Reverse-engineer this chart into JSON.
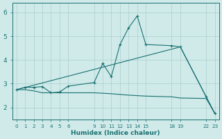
{
  "background_color": "#d0eaea",
  "grid_color": "#aacece",
  "line_color": "#1a7070",
  "xlabel": "Humidex (Indice chaleur)",
  "figsize": [
    3.2,
    2.0
  ],
  "dpi": 100,
  "xlim": [
    -0.5,
    23.5
  ],
  "ylim": [
    1.5,
    6.4
  ],
  "yticks": [
    2,
    3,
    4,
    5,
    6
  ],
  "xtick_positions": [
    0,
    1,
    2,
    3,
    4,
    5,
    6,
    9,
    10,
    11,
    12,
    13,
    14,
    15,
    18,
    19,
    22,
    23
  ],
  "xtick_labels": [
    "0",
    "1",
    "2",
    "3",
    "4",
    "5",
    "6",
    "9",
    "10",
    "11",
    "12",
    "13",
    "14",
    "15",
    "18",
    "19",
    "22",
    "23"
  ],
  "line1_x": [
    0,
    1,
    2,
    3,
    4,
    5,
    6,
    9,
    10,
    11,
    12,
    13,
    14,
    15,
    18,
    19,
    22,
    23
  ],
  "line1_y": [
    2.75,
    2.85,
    2.85,
    2.88,
    2.62,
    2.65,
    2.9,
    3.05,
    3.85,
    3.3,
    4.65,
    5.35,
    5.85,
    4.65,
    4.6,
    4.55,
    2.45,
    1.75
  ],
  "line2_x": [
    0,
    19,
    22,
    23
  ],
  "line2_y": [
    2.75,
    4.55,
    2.45,
    1.75
  ],
  "line3_x": [
    0,
    1,
    2,
    3,
    4,
    5,
    6,
    9,
    10,
    11,
    12,
    13,
    14,
    15,
    18,
    19,
    22,
    23
  ],
  "line3_y": [
    2.75,
    2.75,
    2.7,
    2.62,
    2.62,
    2.62,
    2.62,
    2.62,
    2.6,
    2.58,
    2.55,
    2.52,
    2.5,
    2.48,
    2.45,
    2.4,
    2.38,
    1.75
  ]
}
